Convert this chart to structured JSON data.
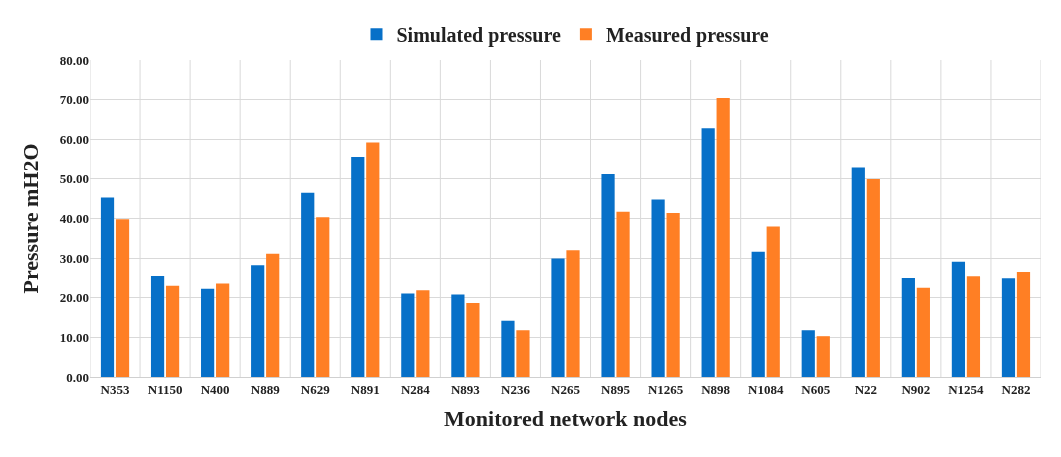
{
  "chart_data": {
    "type": "bar",
    "xlabel": "Monitored network nodes",
    "ylabel": "Pressure mH2O",
    "categories": [
      "N353",
      "N1150",
      "N400",
      "N889",
      "N629",
      "N891",
      "N284",
      "N893",
      "N236",
      "N265",
      "N895",
      "N1265",
      "N898",
      "N1084",
      "N605",
      "N22",
      "N902",
      "N1254",
      "N282"
    ],
    "series": [
      {
        "name": "Simulated pressure",
        "color": "#0770c8",
        "values": [
          45.3,
          25.5,
          22.3,
          28.2,
          46.5,
          55.5,
          21.1,
          20.8,
          14.2,
          29.9,
          51.2,
          44.8,
          62.8,
          31.6,
          11.8,
          52.9,
          25.0,
          29.1,
          24.9
        ]
      },
      {
        "name": "Measured pressure",
        "color": "#ff7f24",
        "values": [
          39.8,
          23.0,
          23.6,
          31.1,
          40.3,
          59.2,
          21.9,
          18.7,
          11.8,
          32.0,
          41.7,
          41.4,
          70.4,
          38.0,
          10.3,
          50.0,
          22.5,
          25.4,
          26.5
        ]
      }
    ],
    "ylim": [
      0,
      80
    ],
    "yticks": [
      {
        "value": 0,
        "label": "0.00"
      },
      {
        "value": 10,
        "label": "10.00"
      },
      {
        "value": 20,
        "label": "20.00"
      },
      {
        "value": 30,
        "label": "30.00"
      },
      {
        "value": 40,
        "label": "40.00"
      },
      {
        "value": 50,
        "label": "50.00"
      },
      {
        "value": 60,
        "label": "60.00"
      },
      {
        "value": 70,
        "label": "70.00"
      },
      {
        "value": 80,
        "label": "80.00"
      }
    ],
    "grid": true,
    "legend": "top"
  }
}
